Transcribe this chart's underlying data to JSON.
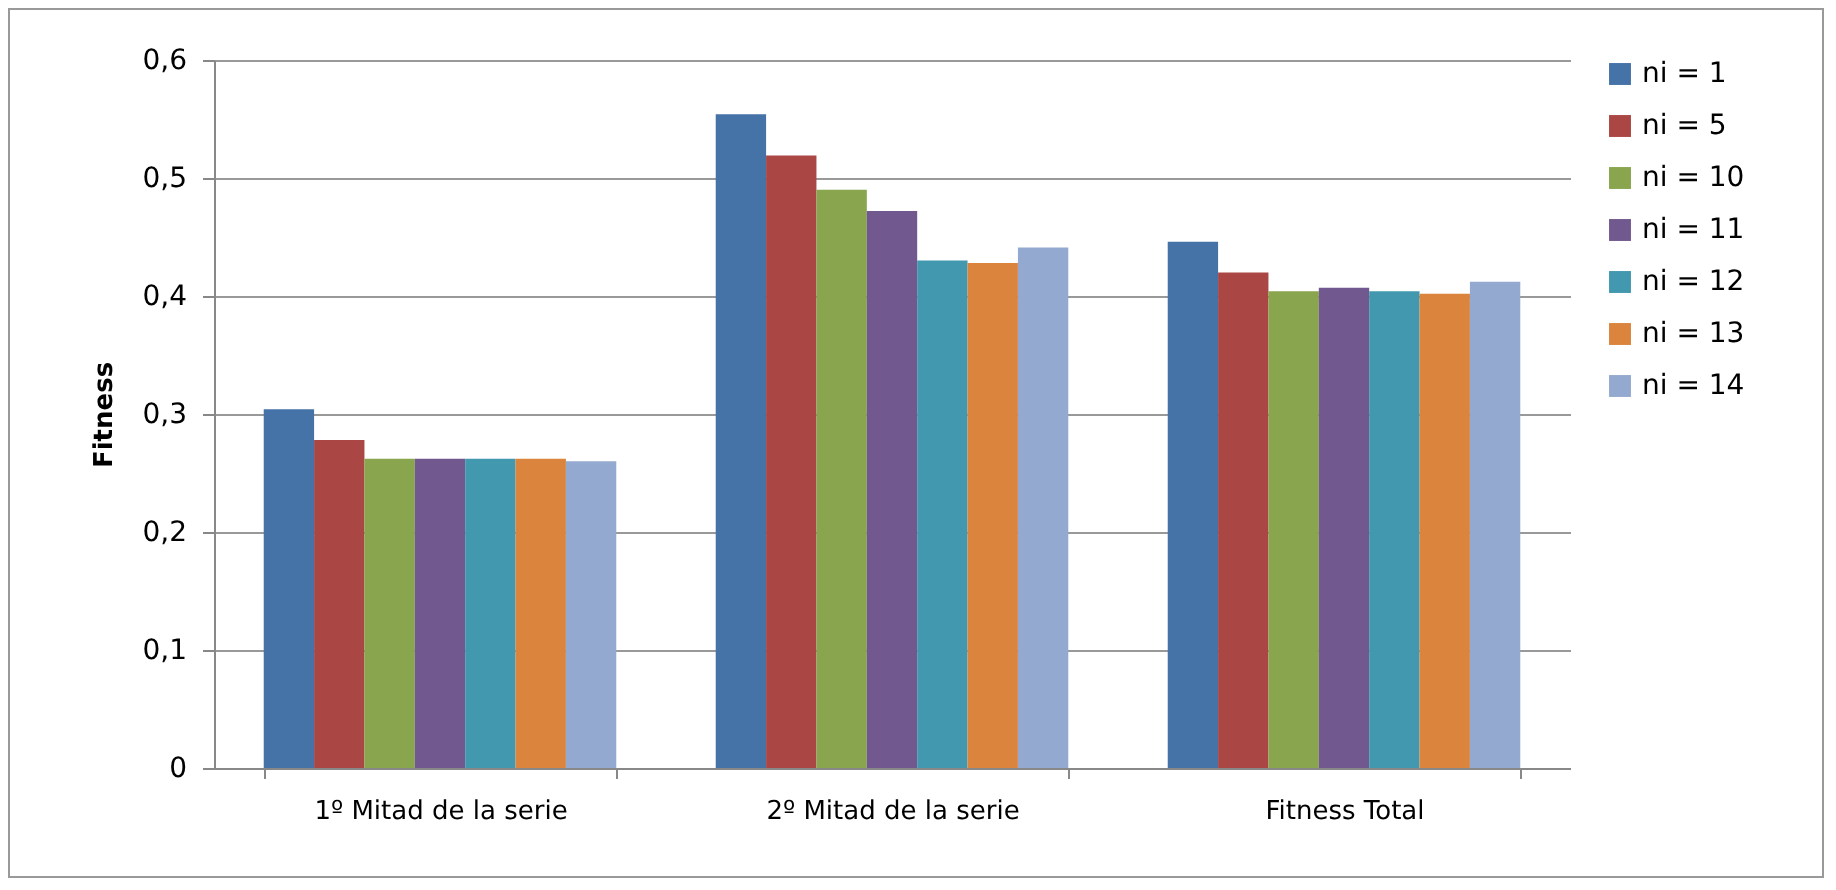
{
  "chart_data": {
    "type": "bar",
    "ylabel": "Fitness",
    "categories": [
      "1º Mitad de la serie",
      "2º Mitad de la serie",
      "Fitness Total"
    ],
    "series": [
      {
        "name": "ni = 1",
        "color": "#4572a7",
        "values": [
          0.304,
          0.554,
          0.446
        ]
      },
      {
        "name": "ni = 5",
        "color": "#aa4643",
        "values": [
          0.278,
          0.519,
          0.42
        ]
      },
      {
        "name": "ni = 10",
        "color": "#89a54e",
        "values": [
          0.262,
          0.49,
          0.404
        ]
      },
      {
        "name": "ni = 11",
        "color": "#71588f",
        "values": [
          0.262,
          0.472,
          0.407
        ]
      },
      {
        "name": "ni = 12",
        "color": "#4198af",
        "values": [
          0.262,
          0.43,
          0.404
        ]
      },
      {
        "name": "ni = 13",
        "color": "#db843d",
        "values": [
          0.262,
          0.428,
          0.402
        ]
      },
      {
        "name": "ni = 14",
        "color": "#93a9cf",
        "values": [
          0.26,
          0.441,
          0.412
        ]
      }
    ],
    "ylim": [
      0,
      0.6
    ],
    "yticks": [
      {
        "value": 0,
        "label": "0"
      },
      {
        "value": 0.1,
        "label": "0,1"
      },
      {
        "value": 0.2,
        "label": "0,2"
      },
      {
        "value": 0.3,
        "label": "0,3"
      },
      {
        "value": 0.4,
        "label": "0,4"
      },
      {
        "value": 0.5,
        "label": "0,5"
      },
      {
        "value": 0.6,
        "label": "0,6"
      }
    ],
    "grid": "y",
    "legend": "right"
  }
}
